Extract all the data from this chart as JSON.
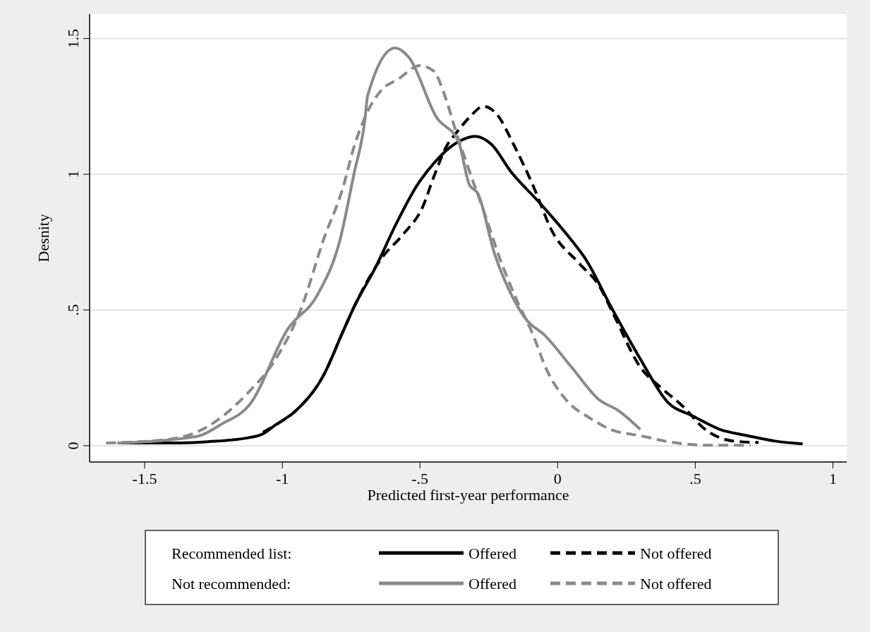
{
  "chart_data": {
    "type": "line",
    "xlabel": "Predicted first-year performance",
    "ylabel": "Desnity",
    "xlim": [
      -1.7,
      1.05
    ],
    "xticks": [
      {
        "value": -1.5,
        "label": "-1.5"
      },
      {
        "value": -1,
        "label": "-1"
      },
      {
        "value": -0.5,
        "label": "-.5"
      },
      {
        "value": 0,
        "label": "0"
      },
      {
        "value": 0.5,
        "label": ".5"
      },
      {
        "value": 1,
        "label": "1"
      }
    ],
    "ylim": [
      -0.06,
      1.59
    ],
    "yticks": [
      {
        "value": 0,
        "label": "0"
      },
      {
        "value": 0.5,
        "label": ".5"
      },
      {
        "value": 1,
        "label": "1"
      },
      {
        "value": 1.5,
        "label": "1.5"
      }
    ],
    "grid": "y",
    "legend": "bottom",
    "marker": "none",
    "annotations": [
      "Recommended list:",
      "Not recommended:"
    ],
    "series": [
      {
        "name": "Offered",
        "color": "#000000",
        "line_style": "solid",
        "x": [
          -1.59,
          -1.41,
          -1.27,
          -1.12,
          -1.07,
          -1.03,
          -0.95,
          -0.85,
          -0.78,
          -0.74,
          -0.66,
          -0.59,
          -0.51,
          -0.45,
          -0.39,
          -0.34,
          -0.3,
          -0.24,
          -0.17,
          -0.07,
          0.04,
          0.1,
          0.2,
          0.3,
          0.4,
          0.49,
          0.59,
          0.69,
          0.79,
          0.89
        ],
        "values": [
          0.01,
          0.01,
          0.015,
          0.03,
          0.044,
          0.073,
          0.13,
          0.26,
          0.42,
          0.51,
          0.66,
          0.81,
          0.96,
          1.04,
          1.1,
          1.13,
          1.14,
          1.11,
          1.01,
          0.9,
          0.77,
          0.69,
          0.5,
          0.32,
          0.16,
          0.11,
          0.06,
          0.037,
          0.017,
          0.007
        ]
      },
      {
        "name": "Not offered",
        "color": "#000000",
        "line_style": "dashed",
        "x": [
          -1.07,
          -1.03,
          -0.95,
          -0.85,
          -0.78,
          -0.74,
          -0.64,
          -0.56,
          -0.49,
          -0.45,
          -0.4,
          -0.37,
          -0.32,
          -0.27,
          -0.22,
          -0.16,
          -0.09,
          -0.02,
          0.08,
          0.15,
          0.2,
          0.3,
          0.38,
          0.45,
          0.54,
          0.64,
          0.73
        ],
        "values": [
          0.05,
          0.073,
          0.13,
          0.26,
          0.42,
          0.51,
          0.69,
          0.78,
          0.88,
          0.99,
          1.11,
          1.15,
          1.21,
          1.25,
          1.22,
          1.11,
          0.96,
          0.79,
          0.67,
          0.59,
          0.49,
          0.29,
          0.21,
          0.15,
          0.057,
          0.017,
          0.012
        ]
      },
      {
        "name": "Offered",
        "color": "#8a8a8a",
        "line_style": "solid",
        "x": [
          -1.6,
          -1.31,
          -1.22,
          -1.12,
          -0.98,
          -0.87,
          -0.79,
          -0.74,
          -0.7,
          -0.69,
          -0.59,
          -0.54,
          -0.44,
          -0.36,
          -0.32,
          -0.29,
          -0.23,
          -0.16,
          -0.11,
          -0.05,
          0.05,
          0.15,
          0.22,
          0.3
        ],
        "values": [
          0.01,
          0.034,
          0.08,
          0.15,
          0.43,
          0.56,
          0.76,
          1.0,
          1.2,
          1.29,
          1.465,
          1.43,
          1.21,
          1.12,
          0.96,
          0.93,
          0.71,
          0.54,
          0.46,
          0.41,
          0.29,
          0.17,
          0.13,
          0.06
        ]
      },
      {
        "name": "Not offered",
        "color": "#8a8a8a",
        "line_style": "dashed",
        "x": [
          -1.64,
          -1.41,
          -1.29,
          -1.12,
          -1.03,
          -0.93,
          -0.85,
          -0.78,
          -0.74,
          -0.7,
          -0.64,
          -0.58,
          -0.5,
          -0.45,
          -0.41,
          -0.37,
          -0.32,
          -0.26,
          -0.21,
          -0.15,
          -0.09,
          -0.04,
          0.03,
          0.12,
          0.2,
          0.3,
          0.39,
          0.54,
          0.7
        ],
        "values": [
          0.01,
          0.024,
          0.06,
          0.2,
          0.31,
          0.51,
          0.76,
          0.95,
          1.1,
          1.21,
          1.31,
          1.35,
          1.4,
          1.38,
          1.29,
          1.16,
          1.01,
          0.84,
          0.69,
          0.54,
          0.41,
          0.28,
          0.17,
          0.1,
          0.057,
          0.037,
          0.017,
          0.002,
          0.002
        ]
      }
    ]
  }
}
